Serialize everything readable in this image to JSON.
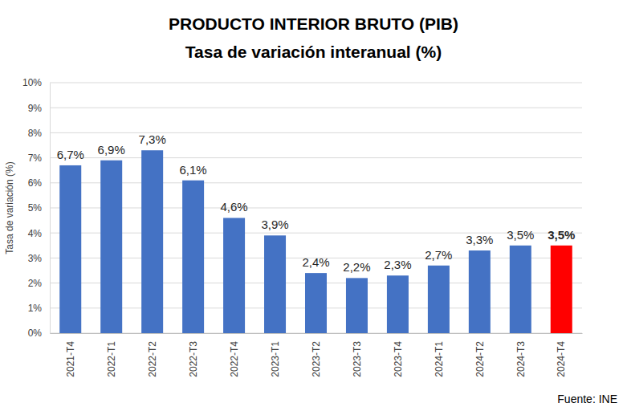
{
  "chart_data": {
    "type": "bar",
    "title": "PRODUCTO INTERIOR BRUTO (PIB)",
    "subtitle": "Tasa de variación interanual (%)",
    "y_label": "Tasa de variación (%)",
    "source": "Fuente: INE",
    "categories": [
      "2021-T4",
      "2022-T1",
      "2022-T2",
      "2022-T3",
      "2022-T4",
      "2023-T1",
      "2023-T2",
      "2023-T3",
      "2023-T4",
      "2024-T1",
      "2024-T2",
      "2024-T3",
      "2024-T4"
    ],
    "values": [
      6.7,
      6.9,
      7.3,
      6.1,
      4.6,
      3.9,
      2.4,
      2.2,
      2.3,
      2.7,
      3.3,
      3.5,
      3.5
    ],
    "value_labels": [
      "6,7%",
      "6,9%",
      "7,3%",
      "6,1%",
      "4,6%",
      "3,9%",
      "2,4%",
      "2,2%",
      "2,3%",
      "2,7%",
      "3,3%",
      "3,5%",
      "3,5%"
    ],
    "colors": [
      "#4472C4",
      "#4472C4",
      "#4472C4",
      "#4472C4",
      "#4472C4",
      "#4472C4",
      "#4472C4",
      "#4472C4",
      "#4472C4",
      "#4472C4",
      "#4472C4",
      "#4472C4",
      "#FF0000"
    ],
    "ylim": [
      0,
      10
    ],
    "yticks": [
      {
        "value": 0,
        "label": "0%"
      },
      {
        "value": 1,
        "label": "1%"
      },
      {
        "value": 2,
        "label": "2%"
      },
      {
        "value": 3,
        "label": "3%"
      },
      {
        "value": 4,
        "label": "4%"
      },
      {
        "value": 5,
        "label": "5%"
      },
      {
        "value": 6,
        "label": "6%"
      },
      {
        "value": 7,
        "label": "7%"
      },
      {
        "value": 8,
        "label": "8%"
      },
      {
        "value": 9,
        "label": "9%"
      },
      {
        "value": 10,
        "label": "10%"
      }
    ],
    "grid": true,
    "data_labels": true
  }
}
